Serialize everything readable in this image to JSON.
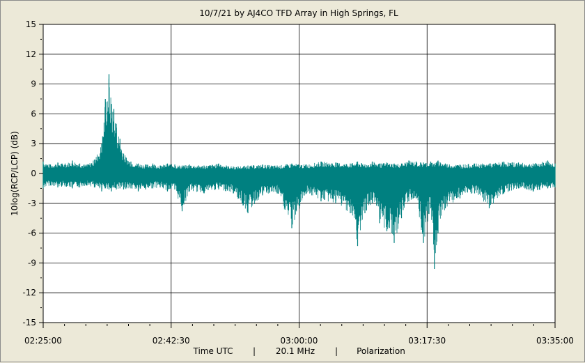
{
  "chart_data": {
    "type": "line",
    "title": "10/7/21  by  AJ4CO TFD Array  in  High Springs, FL",
    "ylabel": "10log(RCP/LCP) (dB)",
    "xlabel_parts": [
      "Time UTC",
      "|",
      "20.1 MHz",
      "|",
      "Polarization"
    ],
    "x_tick_labels": [
      "02:25:00",
      "02:42:30",
      "03:00:00",
      "03:17:30",
      "03:35:00"
    ],
    "y_tick_labels": [
      "15",
      "12",
      "9",
      "6",
      "3",
      "0",
      "-3",
      "-6",
      "-9",
      "-12",
      "-15"
    ],
    "ylim": [
      -15,
      15
    ],
    "xlim": [
      "02:25:00",
      "03:35:00"
    ],
    "grid": true,
    "series_color": "#008080",
    "x": [
      "02:25:00",
      "02:26:00",
      "02:27:00",
      "02:28:00",
      "02:29:00",
      "02:30:00",
      "02:31:00",
      "02:32:00",
      "02:33:00",
      "02:33:30",
      "02:34:00",
      "02:34:20",
      "02:34:40",
      "02:35:00",
      "02:35:30",
      "02:36:00",
      "02:37:00",
      "02:38:00",
      "02:39:00",
      "02:40:00",
      "02:41:00",
      "02:42:00",
      "02:43:00",
      "02:44:00",
      "02:45:00",
      "02:47:00",
      "02:49:00",
      "02:51:00",
      "02:53:00",
      "02:55:00",
      "02:57:00",
      "02:59:00",
      "03:01:00",
      "03:03:00",
      "03:05:00",
      "03:07:00",
      "03:08:00",
      "03:09:00",
      "03:10:00",
      "03:11:00",
      "03:12:00",
      "03:13:00",
      "03:14:00",
      "03:15:00",
      "03:16:00",
      "03:17:00",
      "03:18:00",
      "03:18:30",
      "03:19:00",
      "03:20:00",
      "03:22:00",
      "03:24:00",
      "03:26:00",
      "03:28:00",
      "03:30:00",
      "03:32:00",
      "03:34:00",
      "03:35:00"
    ],
    "y_max": [
      1.2,
      0.9,
      1.1,
      1.0,
      1.3,
      1.0,
      0.9,
      1.4,
      3.0,
      7.5,
      10.0,
      7.0,
      6.5,
      5.0,
      3.5,
      2.0,
      1.2,
      1.0,
      0.9,
      1.0,
      0.8,
      1.0,
      0.9,
      0.8,
      0.9,
      0.8,
      1.0,
      0.7,
      0.8,
      0.9,
      0.8,
      1.0,
      0.9,
      1.2,
      1.1,
      1.0,
      1.2,
      0.9,
      1.2,
      1.0,
      1.1,
      1.0,
      1.0,
      1.3,
      1.2,
      1.1,
      1.2,
      1.0,
      1.3,
      1.0,
      0.9,
      1.0,
      1.0,
      1.2,
      1.1,
      1.0,
      1.3,
      1.0
    ],
    "y_min": [
      -1.5,
      -1.2,
      -1.4,
      -1.3,
      -1.5,
      -1.4,
      -1.2,
      -1.4,
      -1.8,
      -1.5,
      -1.6,
      -1.8,
      -1.4,
      -1.6,
      -1.5,
      -1.6,
      -1.5,
      -1.8,
      -1.6,
      -1.5,
      -1.4,
      -1.8,
      -1.6,
      -3.8,
      -1.8,
      -2.0,
      -1.6,
      -2.0,
      -4.0,
      -2.2,
      -2.0,
      -5.5,
      -2.0,
      -2.8,
      -3.0,
      -4.0,
      -7.3,
      -4.0,
      -3.0,
      -5.0,
      -5.8,
      -7.0,
      -4.5,
      -2.8,
      -2.5,
      -7.0,
      -3.5,
      -9.6,
      -6.0,
      -3.5,
      -2.5,
      -2.0,
      -3.5,
      -2.0,
      -1.5,
      -1.8,
      -1.5,
      -1.4
    ]
  }
}
